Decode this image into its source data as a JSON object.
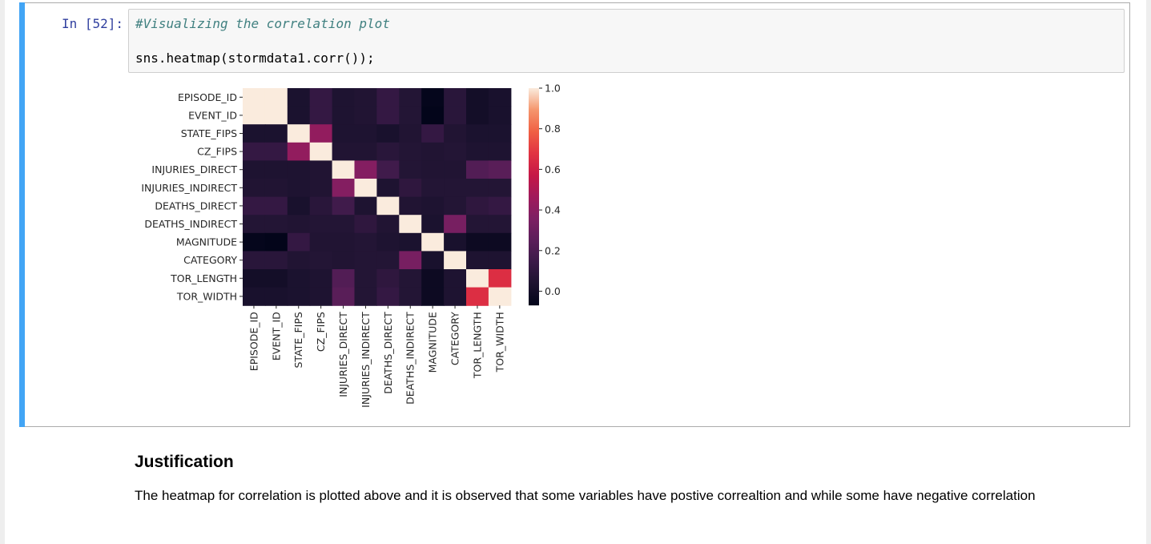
{
  "cell": {
    "prompt": "In [52]:",
    "code_comment": "#Visualizing the correlation plot",
    "code_call": "sns.heatmap(stormdata1.corr());"
  },
  "markdown": {
    "heading": "Justification",
    "body": "The heatmap for correlation is plotted above and it is observed that some variables have postive correaltion and while some have negative correlation"
  },
  "chart_data": {
    "type": "heatmap",
    "title": "",
    "xlabel": "",
    "ylabel": "",
    "labels": [
      "EPISODE_ID",
      "EVENT_ID",
      "STATE_FIPS",
      "CZ_FIPS",
      "INJURIES_DIRECT",
      "INJURIES_INDIRECT",
      "DEATHS_DIRECT",
      "DEATHS_INDIRECT",
      "MAGNITUDE",
      "CATEGORY",
      "TOR_LENGTH",
      "TOR_WIDTH"
    ],
    "values": [
      [
        1.0,
        1.0,
        0.03,
        0.12,
        0.04,
        0.05,
        0.12,
        0.06,
        -0.06,
        0.08,
        0.0,
        0.02
      ],
      [
        1.0,
        1.0,
        0.03,
        0.12,
        0.04,
        0.05,
        0.12,
        0.06,
        -0.07,
        0.08,
        0.0,
        0.02
      ],
      [
        0.03,
        0.03,
        1.0,
        0.42,
        0.04,
        0.04,
        0.02,
        0.05,
        0.12,
        0.05,
        0.03,
        0.03
      ],
      [
        0.12,
        0.12,
        0.42,
        1.0,
        0.05,
        0.05,
        0.08,
        0.06,
        0.05,
        0.06,
        0.04,
        0.04
      ],
      [
        0.04,
        0.04,
        0.04,
        0.05,
        1.0,
        0.38,
        0.16,
        0.06,
        0.05,
        0.05,
        0.22,
        0.24
      ],
      [
        0.05,
        0.05,
        0.04,
        0.05,
        0.38,
        1.0,
        0.04,
        0.1,
        0.06,
        0.06,
        0.06,
        0.06
      ],
      [
        0.12,
        0.12,
        0.02,
        0.08,
        0.16,
        0.04,
        1.0,
        0.05,
        0.04,
        0.06,
        0.1,
        0.12
      ],
      [
        0.06,
        0.06,
        0.05,
        0.06,
        0.06,
        0.1,
        0.05,
        1.0,
        0.03,
        0.34,
        0.06,
        0.06
      ],
      [
        -0.06,
        -0.07,
        0.12,
        0.05,
        0.05,
        0.06,
        0.04,
        0.03,
        1.0,
        0.02,
        -0.03,
        -0.03
      ],
      [
        0.08,
        0.08,
        0.05,
        0.06,
        0.05,
        0.06,
        0.06,
        0.34,
        0.02,
        1.0,
        0.04,
        0.04
      ],
      [
        0.0,
        0.0,
        0.03,
        0.04,
        0.22,
        0.06,
        0.1,
        0.06,
        -0.03,
        0.04,
        1.0,
        0.66
      ],
      [
        0.02,
        0.02,
        0.03,
        0.04,
        0.24,
        0.06,
        0.12,
        0.06,
        -0.03,
        0.04,
        0.66,
        1.0
      ]
    ],
    "colorbar": {
      "min": -0.07,
      "max": 1.0,
      "ticks": [
        0.0,
        0.2,
        0.4,
        0.6,
        0.8,
        1.0
      ],
      "tick_labels": [
        "0.0",
        "0.2",
        "0.4",
        "0.6",
        "0.8",
        "1.0"
      ],
      "colormap": "rocket"
    }
  }
}
